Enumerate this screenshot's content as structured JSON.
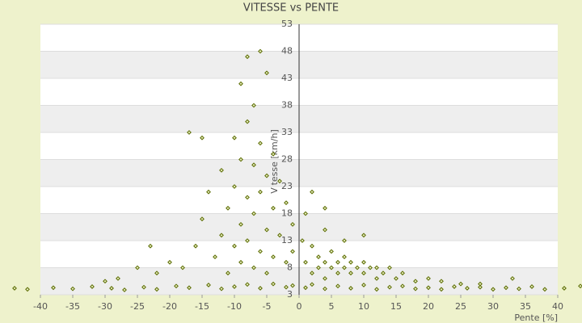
{
  "chart_data": {
    "type": "scatter",
    "title": "VITESSE vs PENTE",
    "x_label": "Pente [%]",
    "y_label": "Vitesse [km/h]",
    "color": "#5a6b00",
    "xlim": [
      -40,
      40
    ],
    "xticks": [
      -40,
      -35,
      -30,
      -25,
      -20,
      -15,
      -10,
      -5,
      0,
      5,
      10,
      15,
      20,
      25,
      30,
      35,
      40
    ],
    "ylim": [
      3,
      53
    ],
    "yticks": [
      3,
      8,
      13,
      18,
      23,
      28,
      33,
      38,
      43,
      48,
      53
    ],
    "x": [
      -44,
      -42,
      -38,
      -35,
      -32,
      -29,
      -27,
      -24,
      -22,
      -19,
      -17,
      -14,
      -12,
      -10,
      -8,
      -6,
      -4,
      -2,
      -1,
      1,
      2,
      4,
      6,
      8,
      10,
      12,
      14,
      16,
      18,
      20,
      22,
      24,
      26,
      28,
      30,
      32,
      34,
      36,
      38,
      41,
      43.5,
      -18,
      -16,
      -15,
      -14,
      -13,
      -12,
      -12,
      -11,
      -11,
      -10,
      -10,
      -10,
      -9,
      -9,
      -9,
      -9,
      -8,
      -8,
      -8,
      -8,
      -7,
      -7,
      -7,
      -7,
      -6,
      -6,
      -6,
      -6,
      -5,
      -5,
      -5,
      -5,
      -4,
      -4,
      -4,
      -3,
      -3,
      -2,
      -2,
      -1,
      -1,
      -17,
      -15,
      -20,
      -22,
      -25,
      -28,
      -30,
      -23,
      0.5,
      1,
      1,
      2,
      2,
      2,
      3,
      3,
      4,
      4,
      4,
      5,
      5,
      6,
      6,
      7,
      7,
      8,
      8,
      9,
      10,
      10,
      11,
      12,
      12,
      13,
      14,
      15,
      16,
      18,
      20,
      22,
      25,
      28,
      33,
      4,
      7,
      10
    ],
    "values": [
      4.2,
      4.0,
      4.3,
      4.1,
      4.5,
      4.2,
      3.9,
      4.4,
      4.0,
      4.6,
      4.3,
      4.8,
      4.1,
      4.5,
      4.9,
      4.2,
      5.0,
      4.4,
      4.7,
      4.3,
      4.9,
      4.1,
      4.6,
      4.2,
      4.8,
      4.0,
      4.4,
      4.6,
      4.1,
      4.3,
      4.0,
      4.5,
      4.2,
      4.4,
      4.0,
      4.3,
      4.1,
      4.5,
      4.0,
      4.2,
      4.6,
      8,
      12,
      17,
      22,
      10,
      14,
      26,
      19,
      7,
      32,
      23,
      12,
      42,
      28,
      16,
      9,
      47,
      35,
      21,
      13,
      38,
      27,
      18,
      8,
      48,
      31,
      22,
      11,
      44,
      25,
      15,
      7,
      29,
      19,
      10,
      24,
      14,
      20,
      9,
      16,
      11,
      33,
      32,
      9,
      7,
      8,
      6,
      5.5,
      12,
      13,
      9,
      18,
      7,
      12,
      22,
      8,
      10,
      6,
      9,
      15,
      8,
      11,
      7,
      9,
      8,
      10,
      7,
      9,
      8,
      7,
      9,
      8,
      6,
      8,
      7,
      8,
      6,
      7,
      5.5,
      6,
      5.5,
      5,
      5,
      6,
      19,
      13,
      14
    ]
  }
}
